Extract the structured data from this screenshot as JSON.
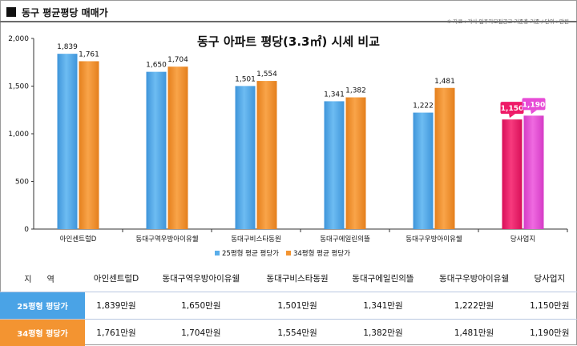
{
  "header": {
    "title": "동구 평균평당 매매가",
    "source": "※ 자료 : 각사 입주자모집공고 기준층 기준 / 단위 : 만원"
  },
  "chart_data": {
    "type": "bar",
    "title": "동구 아파트 평당(3.3㎡) 시세 비교",
    "categories": [
      "아인센트럴D",
      "동대구역우방아이유쉘",
      "동대구비스타동원",
      "동대구에일린의뜰",
      "동대구우방아이유쉘",
      "당사업지"
    ],
    "series": [
      {
        "name": "25평형 평균 평당가",
        "values": [
          1839,
          1650,
          1501,
          1341,
          1222,
          1150
        ],
        "labels": [
          "1,839",
          "1,650",
          "1,501",
          "1,341",
          "1,222",
          "1,150"
        ]
      },
      {
        "name": "34평형 평균 평당가",
        "values": [
          1761,
          1704,
          1554,
          1382,
          1481,
          1190
        ],
        "labels": [
          "1,761",
          "1,704",
          "1,554",
          "1,382",
          "1,481",
          "1,190"
        ]
      }
    ],
    "ylim": [
      0,
      2000
    ],
    "yticks": [
      "0",
      "500",
      "1,000",
      "1,500",
      "2,000"
    ],
    "yticks_values": [
      0,
      500,
      1000,
      1500,
      2000
    ],
    "grid": false,
    "legend_position": "bottom",
    "colors": {
      "s1": "#5aaeea",
      "s2": "#f39431",
      "highlight1": "#ee1a67",
      "highlight2": "#e74cd6"
    },
    "highlight_category": "당사업지"
  },
  "table": {
    "region_label": "지 역",
    "columns": [
      "아인센트럴D",
      "동대구역우방아이유쉘",
      "동대구비스타동원",
      "동대구에일린의뜰",
      "동대구우방아이유쉘",
      "당사업지"
    ],
    "rows": [
      {
        "label": "25평형 평당가",
        "values": [
          "1,839만원",
          "1,650만원",
          "1,501만원",
          "1,341만원",
          "1,222만원",
          "1,150만원"
        ]
      },
      {
        "label": "34평형 평당가",
        "values": [
          "1,761만원",
          "1,704만원",
          "1,554만원",
          "1,382만원",
          "1,481만원",
          "1,190만원"
        ]
      }
    ]
  }
}
